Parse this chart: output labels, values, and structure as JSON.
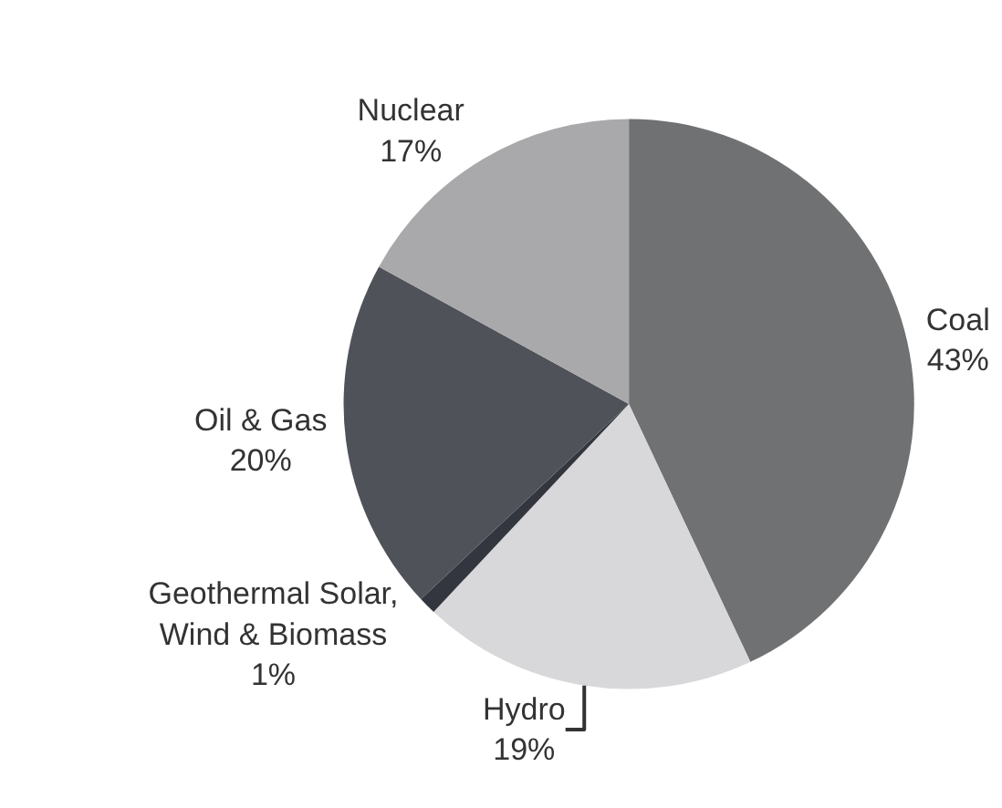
{
  "chart_data": {
    "type": "pie",
    "categories": [
      "Coal",
      "Hydro",
      "Geothermal Solar,\nWind & Biomass",
      "Oil & Gas",
      "Nuclear"
    ],
    "values": [
      43,
      19,
      1,
      20,
      17
    ],
    "value_labels": [
      "43%",
      "19%",
      "1%",
      "20%",
      "17%"
    ],
    "colors": [
      "#707173",
      "#d8d8da",
      "#33363e",
      "#4f5259",
      "#a9a9ab"
    ]
  }
}
